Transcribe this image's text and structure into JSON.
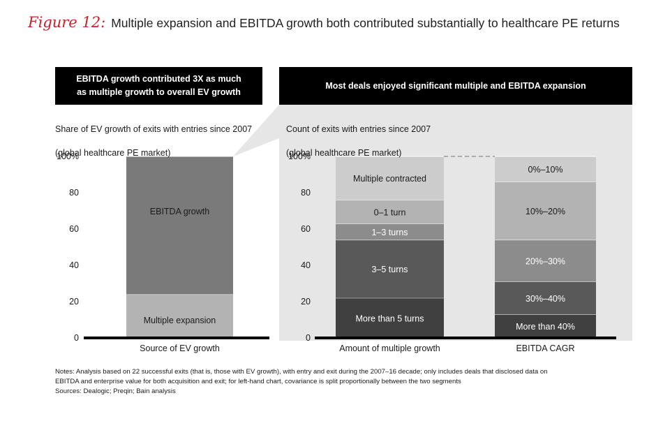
{
  "title": {
    "figure_label": "Figure 12:",
    "text": "Multiple expansion and EBITDA growth both contributed substantially to healthcare PE returns"
  },
  "left_panel": {
    "header_line1": "EBITDA growth contributed 3X as much",
    "header_line2": "as multiple growth to overall EV growth",
    "subtitle_line1": "Share of EV growth of exits with entries since 2007",
    "subtitle_line2": "(global healthcare PE market)"
  },
  "right_panel": {
    "header": "Most deals enjoyed significant multiple and EBITDA expansion",
    "subtitle_line1": "Count of exits with entries since 2007",
    "subtitle_line2": "(global healthcare PE market)"
  },
  "colors": {
    "shade": "#e6e6e6",
    "gray1": "#cccccc",
    "gray2": "#b3b3b3",
    "gray3": "#8c8c8c",
    "gray4": "#7a7a7a",
    "gray5": "#595959",
    "gray6": "#404040"
  },
  "chart_data": [
    {
      "type": "bar",
      "stacked": true,
      "title": "Share of EV growth of exits with entries since 2007",
      "ylim": [
        0,
        100
      ],
      "yticks": [
        "0",
        "20",
        "40",
        "60",
        "80",
        "100%"
      ],
      "ytick_values": [
        0,
        20,
        40,
        60,
        80,
        100
      ],
      "categories": [
        "Source of EV growth"
      ],
      "series": [
        {
          "name": "Multiple expansion",
          "values": [
            24
          ],
          "color": "#b3b3b3",
          "text_color": "#1a1a1a"
        },
        {
          "name": "EBITDA growth",
          "values": [
            76
          ],
          "color": "#7a7a7a",
          "text_color": "#1a1a1a"
        }
      ]
    },
    {
      "type": "bar",
      "stacked": true,
      "title": "Count of exits with entries since 2007",
      "ylim": [
        0,
        100
      ],
      "yticks": [
        "0",
        "20",
        "40",
        "60",
        "80",
        "100%"
      ],
      "ytick_values": [
        0,
        20,
        40,
        60,
        80,
        100
      ],
      "categories": [
        "Amount of multiple growth",
        "EBITDA CAGR"
      ],
      "bars": [
        {
          "category": "Amount of multiple growth",
          "segments": [
            {
              "name": "More than 5 turns",
              "value": 22,
              "color": "#404040",
              "text_color": "#ffffff"
            },
            {
              "name": "3–5 turns",
              "value": 32,
              "color": "#595959",
              "text_color": "#ffffff"
            },
            {
              "name": "1–3 turns",
              "value": 9,
              "color": "#8c8c8c",
              "text_color": "#ffffff"
            },
            {
              "name": "0–1 turn",
              "value": 13,
              "color": "#b3b3b3",
              "text_color": "#1a1a1a"
            },
            {
              "name": "Multiple contracted",
              "value": 24,
              "color": "#cccccc",
              "text_color": "#1a1a1a"
            }
          ]
        },
        {
          "category": "EBITDA CAGR",
          "segments": [
            {
              "name": "More than 40%",
              "value": 13,
              "color": "#404040",
              "text_color": "#ffffff"
            },
            {
              "name": "30%–40%",
              "value": 18,
              "color": "#595959",
              "text_color": "#ffffff"
            },
            {
              "name": "20%–30%",
              "value": 23,
              "color": "#8c8c8c",
              "text_color": "#ffffff"
            },
            {
              "name": "10%–20%",
              "value": 32,
              "color": "#b3b3b3",
              "text_color": "#1a1a1a"
            },
            {
              "name": "0%–10%",
              "value": 14,
              "color": "#cccccc",
              "text_color": "#1a1a1a"
            }
          ]
        }
      ]
    }
  ],
  "notes": {
    "line1": "Notes: Analysis based on 22 successful exits (that is, those with EV growth), with entry and exit during the 2007–16 decade; only includes deals that disclosed data on",
    "line2": "EBITDA and enterprise value for both acquisition and exit; for left-hand chart, covariance is split proportionally between the two segments",
    "line3": "Sources: Dealogic; Preqin; Bain analysis"
  }
}
